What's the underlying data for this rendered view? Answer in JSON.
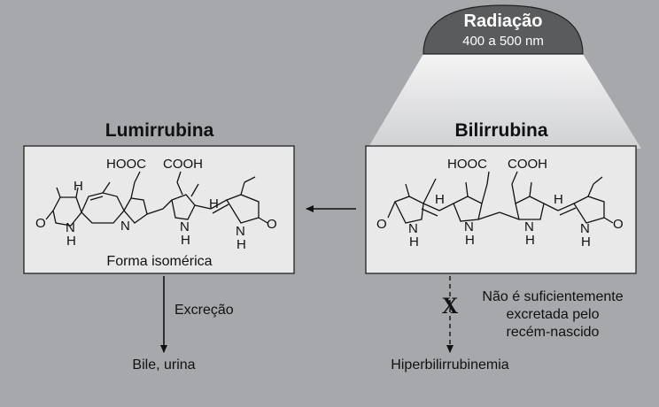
{
  "radiation": {
    "title": "Radiação",
    "range": "400 a 500 nm"
  },
  "lumirubin": {
    "title": "Lumirrubina",
    "caption": "Forma isomérica",
    "labels": [
      "HOOC",
      "COOH",
      "H",
      "O",
      "N",
      "H",
      "N",
      "N",
      "H",
      "H",
      "N",
      "H",
      "O"
    ]
  },
  "bilirubin": {
    "title": "Bilirrubina",
    "labels": [
      "HOOC",
      "COOH",
      "H",
      "H",
      "O",
      "N",
      "H",
      "N",
      "H",
      "N",
      "H",
      "N",
      "H",
      "O"
    ]
  },
  "excretion_label": "Excreção",
  "bile_label": "Bile, urina",
  "blocked_mark": "X",
  "not_excreted_note": [
    "Não é suficientemente",
    "excretada pelo",
    "recém-nascido"
  ],
  "hyperbilirubinemia_label": "Hiperbilirrubinemia",
  "colors": {
    "background": "#a6a8ab",
    "box": "#e9e9ea",
    "lamp": "#555555",
    "beam": "#e3e3e4"
  }
}
